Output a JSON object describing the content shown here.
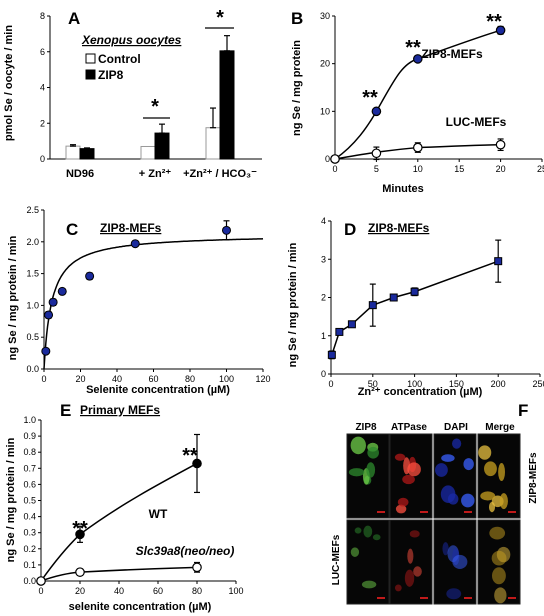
{
  "panels": {
    "A": {
      "letter": "A",
      "title": "Xenopus oocytes",
      "ylabel": "pmol Se / oocyte / min",
      "ylim": [
        0,
        8
      ],
      "yticks": [
        "0",
        "2",
        "4",
        "6",
        "8"
      ],
      "legend": [
        "Control",
        "ZIP8"
      ],
      "colors": {
        "Control": "#ffffff",
        "ZIP8": "#000000"
      },
      "significance": [
        "*",
        "*"
      ]
    },
    "B": {
      "letter": "B",
      "xlabel": "Minutes",
      "ylabel": "ng Se / mg protein",
      "xticks": [
        "0",
        "5",
        "10",
        "15",
        "20",
        "25"
      ],
      "yticks": [
        "0",
        "10",
        "20",
        "30"
      ],
      "series_labels": [
        "ZIP8-MEFs",
        "LUC-MEFs"
      ],
      "significance": [
        "**",
        "**",
        "**"
      ]
    },
    "C": {
      "letter": "C",
      "title": "ZIP8-MEFs",
      "xlabel": "Selenite concentration  (µM)",
      "ylabel": "ng Se / mg protein / min",
      "xticks": [
        "0",
        "20",
        "40",
        "60",
        "80",
        "100",
        "120"
      ],
      "yticks": [
        "0.0",
        "0.5",
        "1.0",
        "1.5",
        "2.0",
        "2.5"
      ]
    },
    "D": {
      "letter": "D",
      "title": "ZIP8-MEFs",
      "xlabel": "Zn²⁺ concentration  (µM)",
      "ylabel": "ng Se / mg protein / min",
      "xticks": [
        "0",
        "50",
        "100",
        "150",
        "200",
        "250"
      ],
      "yticks": [
        "0",
        "1",
        "2",
        "3",
        "4"
      ]
    },
    "E": {
      "letter": "E",
      "title": "Primary MEFs",
      "xlabel": "selenite concentration  (µM)",
      "ylabel": "ng Se / mg protein / min",
      "xticks": [
        "0",
        "20",
        "40",
        "60",
        "80",
        "100"
      ],
      "yticks": [
        "0.0",
        "0.1",
        "0.2",
        "0.3",
        "0.4",
        "0.5",
        "0.6",
        "0.7",
        "0.8",
        "0.9",
        "1.0"
      ],
      "series_labels": [
        "WT",
        "Slc39a8(neo/neo)"
      ],
      "significance": [
        "**",
        "**"
      ]
    },
    "F": {
      "letter": "F",
      "columns": [
        "ZIP8",
        "ATPase",
        "DAPI",
        "Merge"
      ],
      "rows": [
        "ZIP8-MEFs",
        "LUC-MEFs"
      ]
    }
  },
  "chart_data": [
    {
      "panel": "A",
      "type": "bar",
      "categories": [
        "ND96",
        "+ Zn²⁺",
        "+Zn²⁺ / HCO₃⁻"
      ],
      "series": [
        {
          "name": "Control",
          "values": [
            0.72,
            0.7,
            1.75
          ],
          "errors": [
            0.08,
            0.0,
            1.1
          ]
        },
        {
          "name": "ZIP8",
          "values": [
            0.58,
            1.45,
            6.05
          ],
          "errors": [
            0.04,
            0.5,
            0.85
          ]
        }
      ],
      "ylabel": "pmol Se / oocyte / min",
      "ylim": [
        0,
        8
      ]
    },
    {
      "panel": "B",
      "type": "line",
      "xlabel": "Minutes",
      "ylabel": "ng Se / mg protein",
      "xlim": [
        0,
        25
      ],
      "ylim": [
        0,
        30
      ],
      "series": [
        {
          "name": "ZIP8-MEFs",
          "x": [
            0,
            5,
            10,
            20
          ],
          "y": [
            0,
            10,
            21,
            27
          ],
          "errors": [
            0,
            0.4,
            0.5,
            0.8
          ]
        },
        {
          "name": "LUC-MEFs",
          "x": [
            0,
            5,
            10,
            20
          ],
          "y": [
            0,
            1.2,
            2.4,
            3.0
          ],
          "errors": [
            0,
            1.3,
            1.0,
            1.2
          ]
        }
      ]
    },
    {
      "panel": "C",
      "type": "scatter",
      "xlabel": "Selenite concentration  (µM)",
      "ylabel": "ng Se / mg protein / min",
      "xlim": [
        0,
        120
      ],
      "ylim": [
        0,
        2.5
      ],
      "series": [
        {
          "name": "ZIP8-MEFs",
          "x": [
            1,
            2.5,
            5,
            10,
            25,
            50,
            100
          ],
          "y": [
            0.28,
            0.85,
            1.05,
            1.22,
            1.46,
            1.97,
            2.18
          ],
          "errors": [
            0.03,
            0.05,
            0.05,
            0.04,
            0.05,
            0.04,
            0.15
          ]
        }
      ],
      "fit": {
        "vmax": 2.12,
        "km": 4.3
      }
    },
    {
      "panel": "D",
      "type": "line",
      "xlabel": "Zn²⁺ concentration  (µM)",
      "ylabel": "ng Se / mg protein / min",
      "xlim": [
        0,
        250
      ],
      "ylim": [
        0,
        4
      ],
      "series": [
        {
          "name": "ZIP8-MEFs",
          "x": [
            1,
            10,
            25,
            50,
            75,
            100,
            200
          ],
          "y": [
            0.5,
            1.1,
            1.3,
            1.8,
            2.0,
            2.15,
            2.95
          ],
          "errors": [
            0.1,
            0.05,
            0.05,
            0.55,
            0.05,
            0.1,
            0.55
          ]
        }
      ]
    },
    {
      "panel": "E",
      "type": "line",
      "xlabel": "selenite concentration  (µM)",
      "ylabel": "ng Se / mg protein / min",
      "xlim": [
        0,
        100
      ],
      "ylim": [
        0,
        1.0
      ],
      "series": [
        {
          "name": "WT",
          "x": [
            0,
            20,
            80
          ],
          "y": [
            0,
            0.29,
            0.73
          ],
          "errors": [
            0,
            0.05,
            0.18
          ]
        },
        {
          "name": "Slc39a8(neo/neo)",
          "x": [
            0,
            20,
            80
          ],
          "y": [
            0,
            0.055,
            0.085
          ],
          "errors": [
            0,
            0.02,
            0.03
          ]
        }
      ]
    }
  ]
}
